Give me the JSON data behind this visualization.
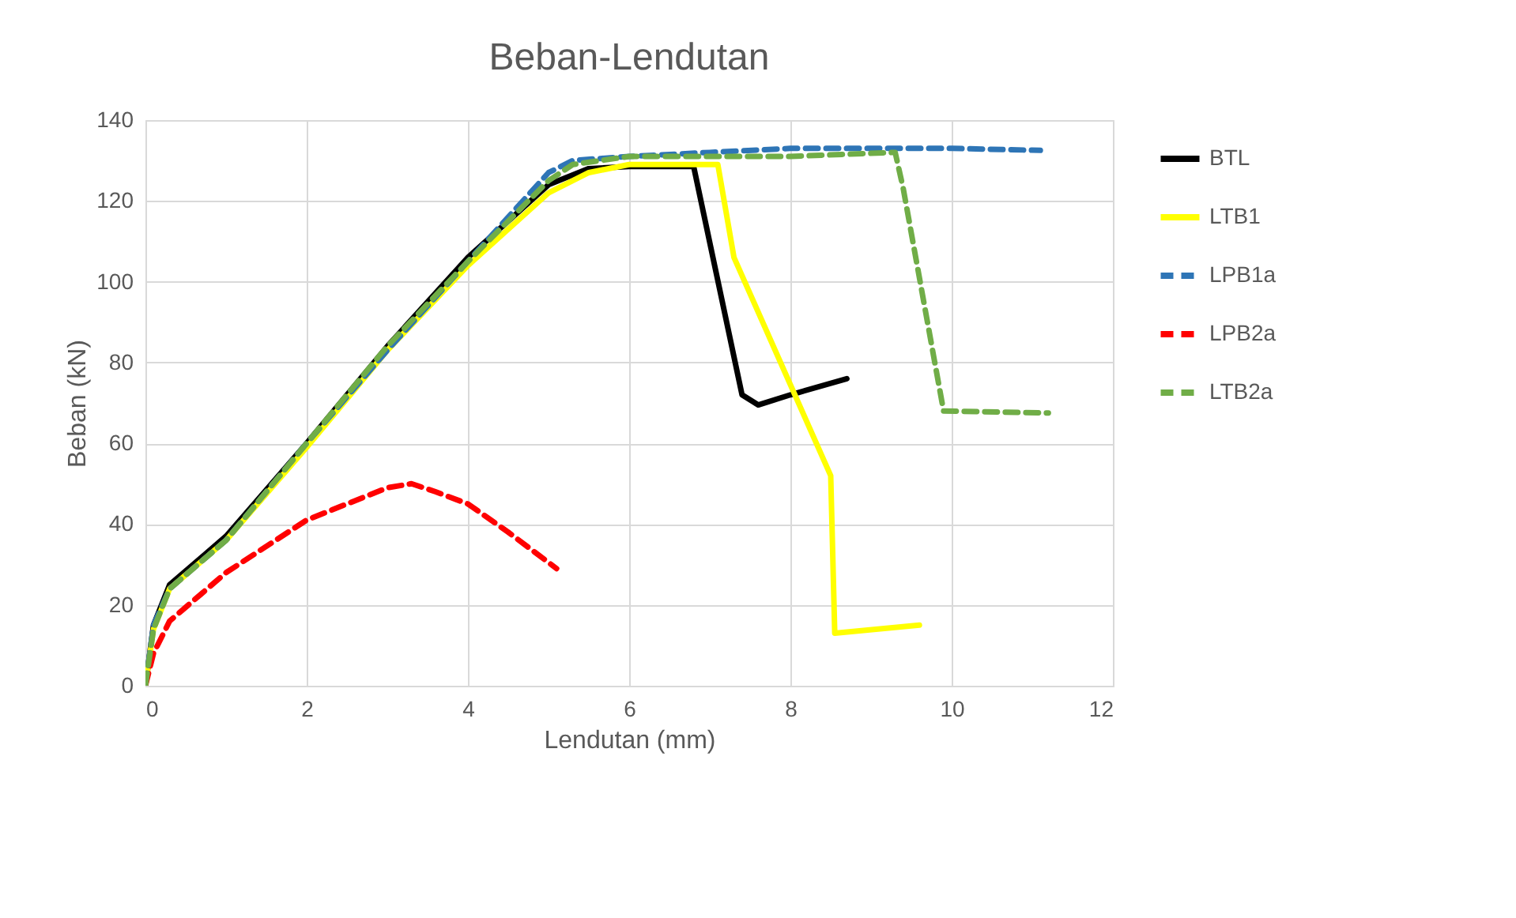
{
  "chart_data": {
    "type": "line",
    "title": "Beban-Lendutan",
    "xlabel": "Lendutan (mm)",
    "ylabel": "Beban (kN)",
    "xlim": [
      0,
      12
    ],
    "xticks": [
      0,
      2,
      4,
      6,
      8,
      10,
      12
    ],
    "ylim": [
      0,
      140
    ],
    "yticks": [
      0,
      20,
      40,
      60,
      80,
      100,
      120,
      140
    ],
    "grid": true,
    "legend": "right",
    "series": [
      {
        "name": "BTL",
        "color": "#000000",
        "line_style": "solid",
        "x": [
          0,
          0.1,
          0.3,
          1,
          2,
          3,
          4,
          5,
          5.5,
          6,
          6.8,
          7.4,
          7.6,
          8,
          8.7
        ],
        "values": [
          0,
          15,
          25,
          37,
          60,
          84,
          106,
          124,
          128,
          128.5,
          128.5,
          72,
          69.5,
          72,
          76
        ]
      },
      {
        "name": "LTB1",
        "color": "#ffff00",
        "line_style": "solid",
        "x": [
          0,
          0.1,
          0.3,
          1,
          2,
          3,
          4,
          5,
          5.5,
          6,
          7.1,
          7.3,
          8.5,
          8.55,
          9.6
        ],
        "values": [
          0,
          14,
          24,
          36,
          59,
          83,
          104,
          122,
          127,
          129,
          129,
          106,
          52,
          13,
          15
        ]
      },
      {
        "name": "LPB1a",
        "color": "#2e75b6",
        "line_style": "dashed",
        "x": [
          0,
          0.1,
          0.3,
          1,
          2,
          3,
          4,
          5,
          5.3,
          6,
          7,
          8,
          9,
          10,
          11.1
        ],
        "values": [
          0,
          15,
          24,
          36,
          60,
          83,
          105,
          127,
          130,
          131,
          132,
          133,
          133,
          133,
          132.5
        ]
      },
      {
        "name": "LPB2a",
        "color": "#ff0000",
        "line_style": "dashed",
        "x": [
          0,
          0.1,
          0.3,
          1,
          2,
          3,
          3.3,
          3.6,
          4,
          4.5,
          5.1
        ],
        "values": [
          0,
          8,
          16,
          28,
          41,
          49,
          50,
          48,
          45,
          38,
          29
        ]
      },
      {
        "name": "LTB2a",
        "color": "#70ad47",
        "line_style": "dashed",
        "x": [
          0,
          0.1,
          0.3,
          1,
          2,
          3,
          4,
          5,
          5.3,
          6,
          8,
          9.3,
          9.4,
          9.9,
          11.2
        ],
        "values": [
          0,
          14,
          24,
          36,
          60,
          84,
          105,
          125,
          129,
          131,
          131,
          132,
          123,
          68,
          67.5
        ]
      }
    ]
  }
}
